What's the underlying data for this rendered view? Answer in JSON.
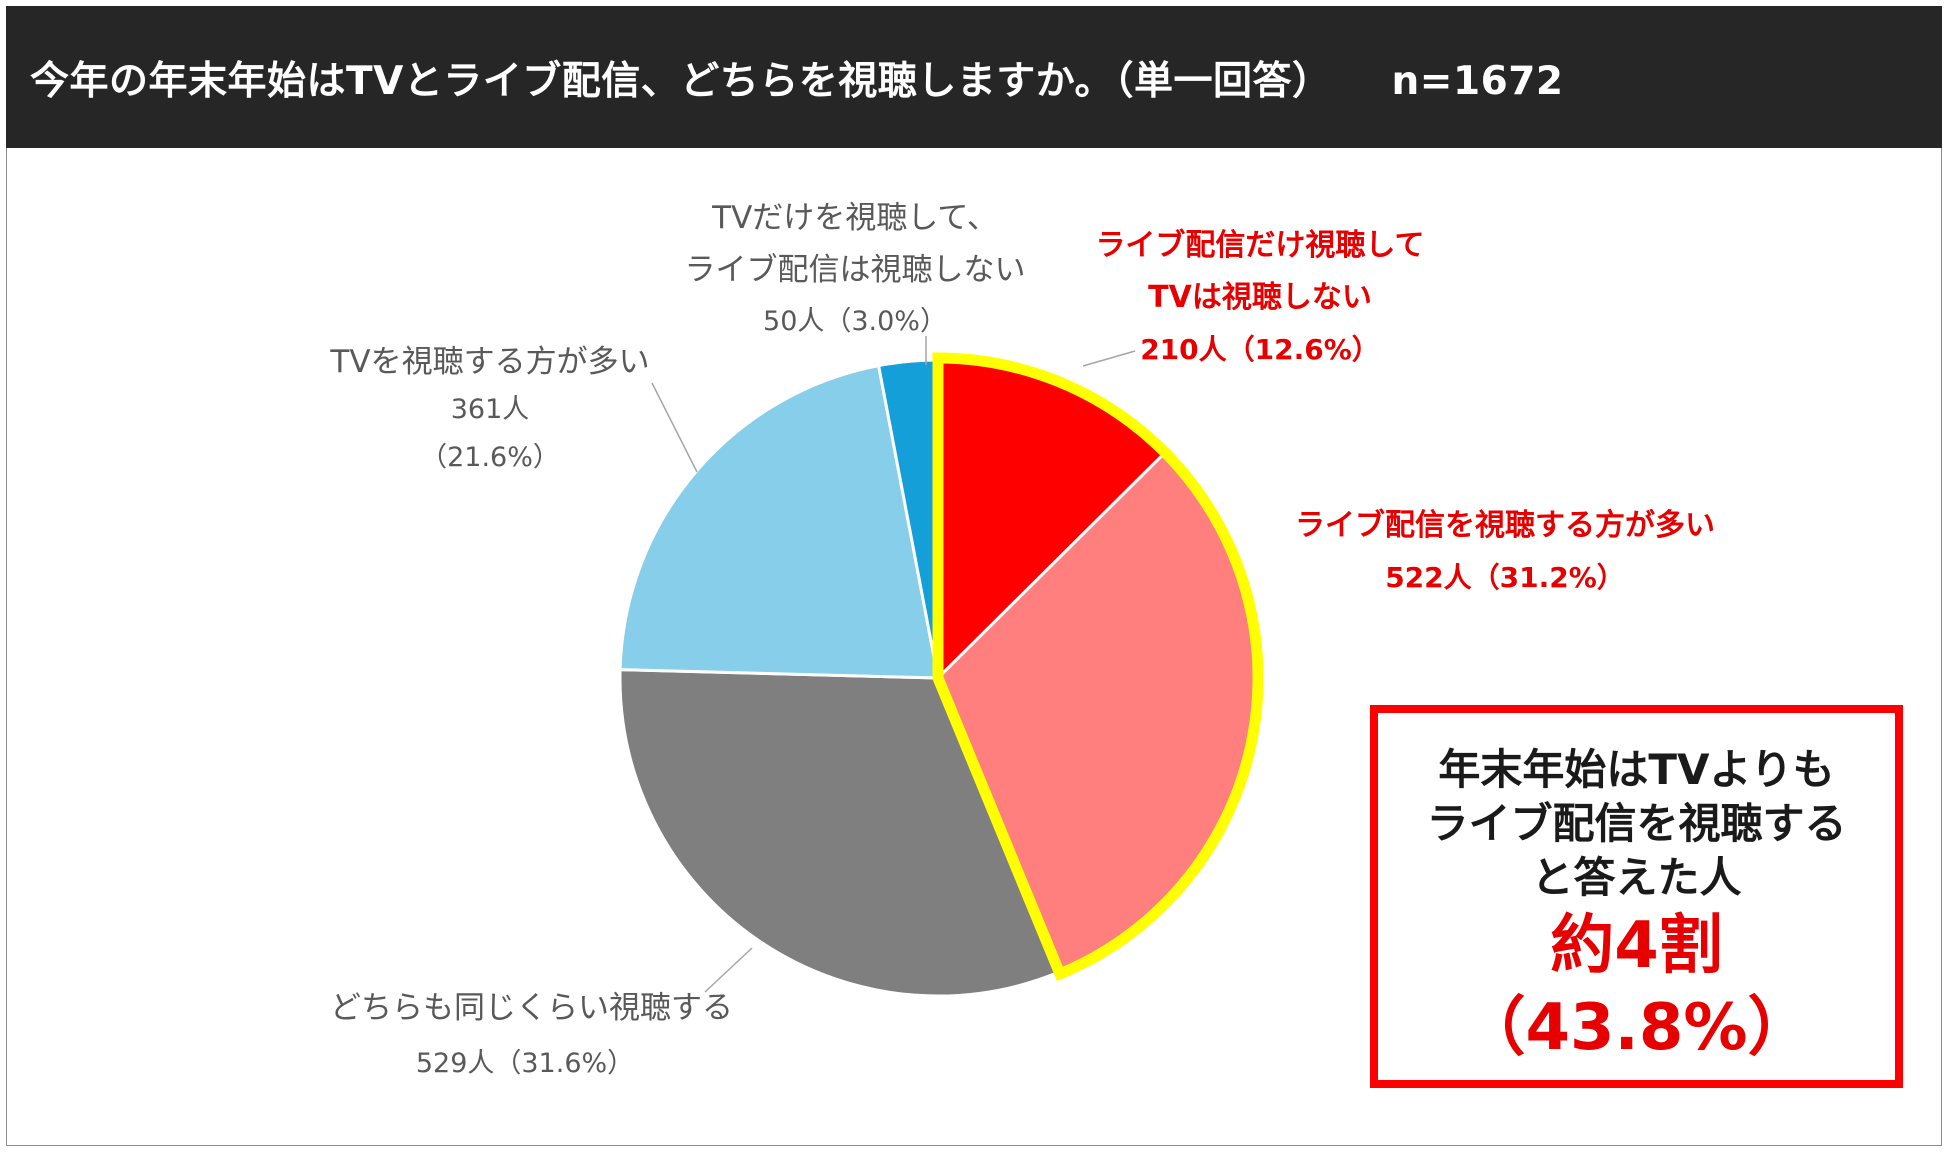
{
  "header": {
    "title": "今年の年末年始はTVとライブ配信、どちらを視聴しますか。（単一回答）",
    "n_label": "n=1672"
  },
  "chart_data": {
    "type": "pie",
    "title": "今年の年末年始はTVとライブ配信、どちらを視聴しますか。（単一回答）",
    "n": 1672,
    "start_angle_deg": 0,
    "direction": "clockwise",
    "slices": [
      {
        "name_lines": [
          "ライブ配信だけ視聴して",
          "TVは視聴しない"
        ],
        "count_text": "210人（12.6%）",
        "count": 210,
        "percent": 12.6,
        "color": "#ff0000",
        "highlight": true
      },
      {
        "name_lines": [
          "ライブ配信を視聴する方が多い"
        ],
        "count_text": "522人（31.2%）",
        "count": 522,
        "percent": 31.2,
        "color": "#ff7f7f",
        "highlight": true
      },
      {
        "name_lines": [
          "どちらも同じくらい視聴する"
        ],
        "count_text": "529人（31.6%）",
        "count": 529,
        "percent": 31.6,
        "color": "#7f7f7f",
        "highlight": false
      },
      {
        "name_lines": [
          "TVを視聴する方が多い"
        ],
        "count_text": "361人",
        "count_text2": "（21.6%）",
        "count": 361,
        "percent": 21.6,
        "color": "#87ceeb",
        "highlight": false
      },
      {
        "name_lines": [
          "TVだけを視聴して、",
          "ライブ配信は視聴しない"
        ],
        "count_text": "50人（3.0%）",
        "count": 50,
        "percent": 3.0,
        "color": "#149fd8",
        "highlight": false
      }
    ],
    "highlight_color": "#ffff00",
    "leader_color": "#a6a6a6"
  },
  "callout": {
    "lines": [
      "年末年始はTVよりも",
      "ライブ配信を視聴する",
      "と答えた人"
    ],
    "big1": "約4割",
    "big2": "（43.8%）",
    "border_color": "#ff0000"
  }
}
